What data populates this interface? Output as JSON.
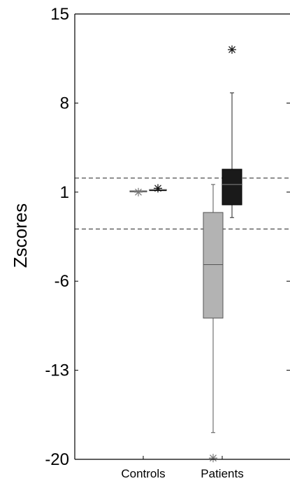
{
  "chart_data": {
    "type": "box",
    "ylabel": "Zscores",
    "ylim": [
      -20,
      15
    ],
    "y_ticks": [
      "15",
      "8",
      "1",
      "-6",
      "-13",
      "-20"
    ],
    "categories": [
      "Controls",
      "Patients"
    ],
    "reference_lines": [
      2.1,
      -1.9
    ],
    "series": [
      {
        "group": "Controls",
        "color": "#999999",
        "box": {
          "q1": 1.1,
          "median": 1.1,
          "q3": 1.1
        },
        "whiskers": [
          1.1,
          1.1
        ],
        "outliers": [
          1.0
        ]
      },
      {
        "group": "Controls",
        "color": "#111111",
        "box": {
          "q1": 1.2,
          "median": 1.2,
          "q3": 1.2
        },
        "whiskers": [
          1.2,
          1.2
        ],
        "outliers": [
          1.3
        ]
      },
      {
        "group": "Patients",
        "color": "#b3b3b3",
        "box": {
          "q1": -8.9,
          "median": -4.7,
          "q3": -0.6
        },
        "whiskers": [
          -17.9,
          1.6
        ],
        "outliers": [
          -19.9
        ]
      },
      {
        "group": "Patients",
        "color": "#1a1a1a",
        "box": {
          "q1": -0.0,
          "median": 1.6,
          "q3": 2.8
        },
        "whiskers": [
          -1.0,
          8.8
        ],
        "outliers": [
          12.2
        ]
      }
    ]
  }
}
